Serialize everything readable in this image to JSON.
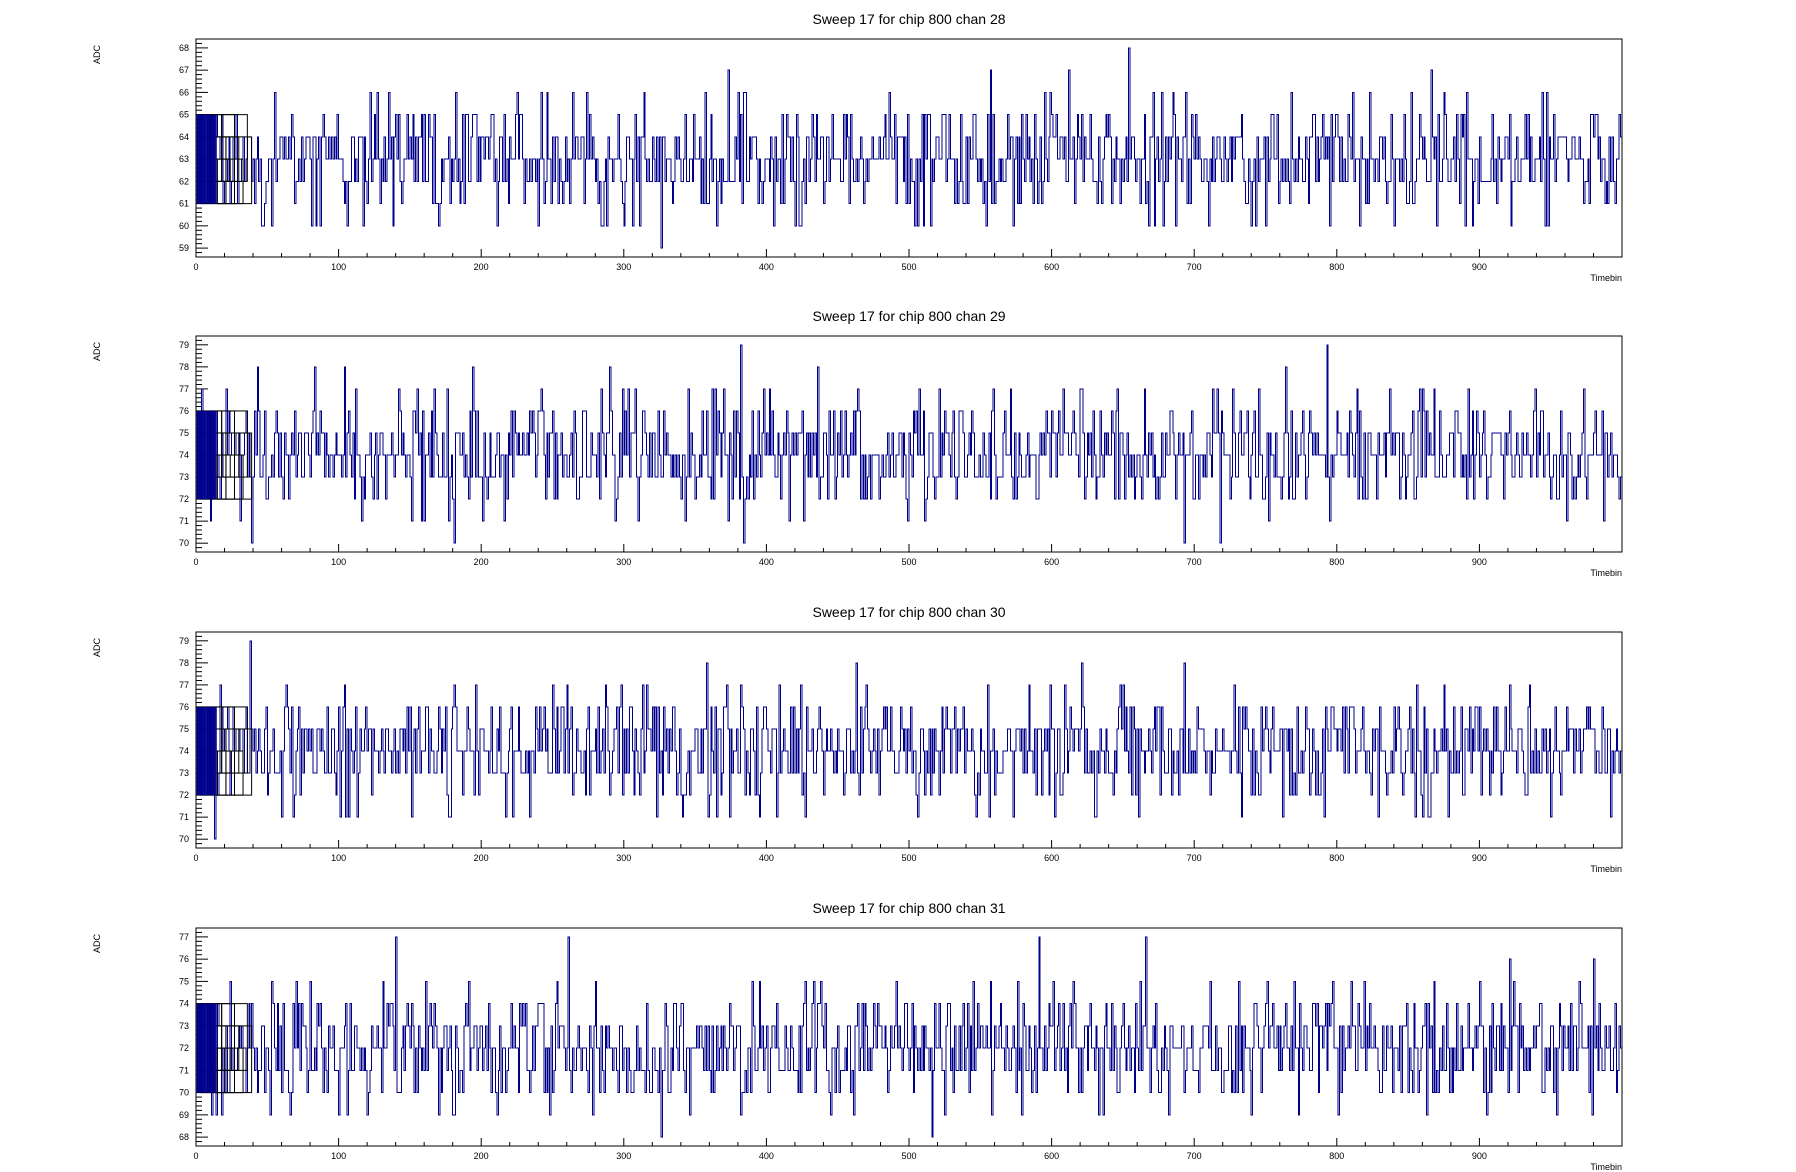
{
  "chart_data": [
    {
      "type": "line",
      "title": "Sweep 17 for chip 800 chan 28",
      "xlabel": "Timebin",
      "ylabel": "ADC",
      "xlim": [
        0,
        1000
      ],
      "ylim": [
        58.6,
        68.4
      ],
      "xticks": [
        0,
        100,
        200,
        300,
        400,
        500,
        600,
        700,
        800,
        900
      ],
      "yticks": [
        59,
        60,
        61,
        62,
        63,
        64,
        65,
        66,
        67,
        68
      ],
      "baseline": 63,
      "grid": false,
      "series": [
        {
          "color": "#00008b",
          "peaks": [
            {
              "x": 654,
              "y": 68
            },
            {
              "x": 373,
              "y": 67
            },
            {
              "x": 557,
              "y": 67
            },
            {
              "x": 612,
              "y": 67
            },
            {
              "x": 866,
              "y": 67
            },
            {
              "x": 326,
              "y": 59
            },
            {
              "x": 87,
              "y": 60
            },
            {
              "x": 117,
              "y": 60
            },
            {
              "x": 211,
              "y": 60
            },
            {
              "x": 240,
              "y": 60
            },
            {
              "x": 288,
              "y": 60
            },
            {
              "x": 510,
              "y": 60
            },
            {
              "x": 573,
              "y": 60
            },
            {
              "x": 795,
              "y": 60
            },
            {
              "x": 840,
              "y": 60
            },
            {
              "x": 890,
              "y": 60
            }
          ]
        }
      ]
    },
    {
      "type": "line",
      "title": "Sweep 17 for chip 800 chan 29",
      "xlabel": "Timebin",
      "ylabel": "ADC",
      "xlim": [
        0,
        1000
      ],
      "ylim": [
        69.6,
        79.4
      ],
      "xticks": [
        0,
        100,
        200,
        300,
        400,
        500,
        600,
        700,
        800,
        900
      ],
      "yticks": [
        70,
        71,
        72,
        73,
        74,
        75,
        76,
        77,
        78,
        79
      ],
      "baseline": 74,
      "grid": false,
      "series": [
        {
          "color": "#00008b",
          "peaks": [
            {
              "x": 382,
              "y": 79
            },
            {
              "x": 793,
              "y": 79
            },
            {
              "x": 43,
              "y": 78
            },
            {
              "x": 83,
              "y": 78
            },
            {
              "x": 104,
              "y": 78
            },
            {
              "x": 194,
              "y": 78
            },
            {
              "x": 290,
              "y": 78
            },
            {
              "x": 436,
              "y": 78
            },
            {
              "x": 764,
              "y": 78
            },
            {
              "x": 39,
              "y": 70
            },
            {
              "x": 181,
              "y": 70
            },
            {
              "x": 384,
              "y": 70
            },
            {
              "x": 693,
              "y": 70
            },
            {
              "x": 718,
              "y": 70
            }
          ]
        }
      ]
    },
    {
      "type": "line",
      "title": "Sweep 17 for chip 800 chan 30",
      "xlabel": "Timebin",
      "ylabel": "ADC",
      "xlim": [
        0,
        1000
      ],
      "ylim": [
        69.6,
        79.4
      ],
      "xticks": [
        0,
        100,
        200,
        300,
        400,
        500,
        600,
        700,
        800,
        900
      ],
      "yticks": [
        70,
        71,
        72,
        73,
        74,
        75,
        76,
        77,
        78,
        79
      ],
      "baseline": 74,
      "grid": false,
      "series": [
        {
          "color": "#00008b",
          "peaks": [
            {
              "x": 38,
              "y": 79
            },
            {
              "x": 358,
              "y": 78
            },
            {
              "x": 463,
              "y": 78
            },
            {
              "x": 621,
              "y": 78
            },
            {
              "x": 693,
              "y": 78
            },
            {
              "x": 260,
              "y": 77
            },
            {
              "x": 856,
              "y": 77
            },
            {
              "x": 935,
              "y": 77
            },
            {
              "x": 13,
              "y": 70
            },
            {
              "x": 105,
              "y": 71
            },
            {
              "x": 178,
              "y": 71
            },
            {
              "x": 217,
              "y": 71
            },
            {
              "x": 556,
              "y": 71
            },
            {
              "x": 855,
              "y": 71
            },
            {
              "x": 1000,
              "y": 74
            }
          ]
        }
      ]
    },
    {
      "type": "line",
      "title": "Sweep 17 for chip 800 chan 31",
      "xlabel": "Timebin",
      "ylabel": "ADC",
      "xlim": [
        0,
        1000
      ],
      "ylim": [
        67.6,
        77.4
      ],
      "xticks": [
        0,
        100,
        200,
        300,
        400,
        500,
        600,
        700,
        800,
        900
      ],
      "yticks": [
        68,
        69,
        70,
        71,
        72,
        73,
        74,
        75,
        76,
        77
      ],
      "baseline": 72,
      "grid": false,
      "series": [
        {
          "color": "#00008b",
          "peaks": [
            {
              "x": 140,
              "y": 77
            },
            {
              "x": 261,
              "y": 77
            },
            {
              "x": 591,
              "y": 77
            },
            {
              "x": 666,
              "y": 77
            },
            {
              "x": 921,
              "y": 76
            },
            {
              "x": 980,
              "y": 76
            },
            {
              "x": 326,
              "y": 68
            },
            {
              "x": 516,
              "y": 68
            },
            {
              "x": 100,
              "y": 69
            },
            {
              "x": 180,
              "y": 69
            },
            {
              "x": 905,
              "y": 69
            },
            {
              "x": 979,
              "y": 69
            }
          ]
        }
      ]
    }
  ]
}
